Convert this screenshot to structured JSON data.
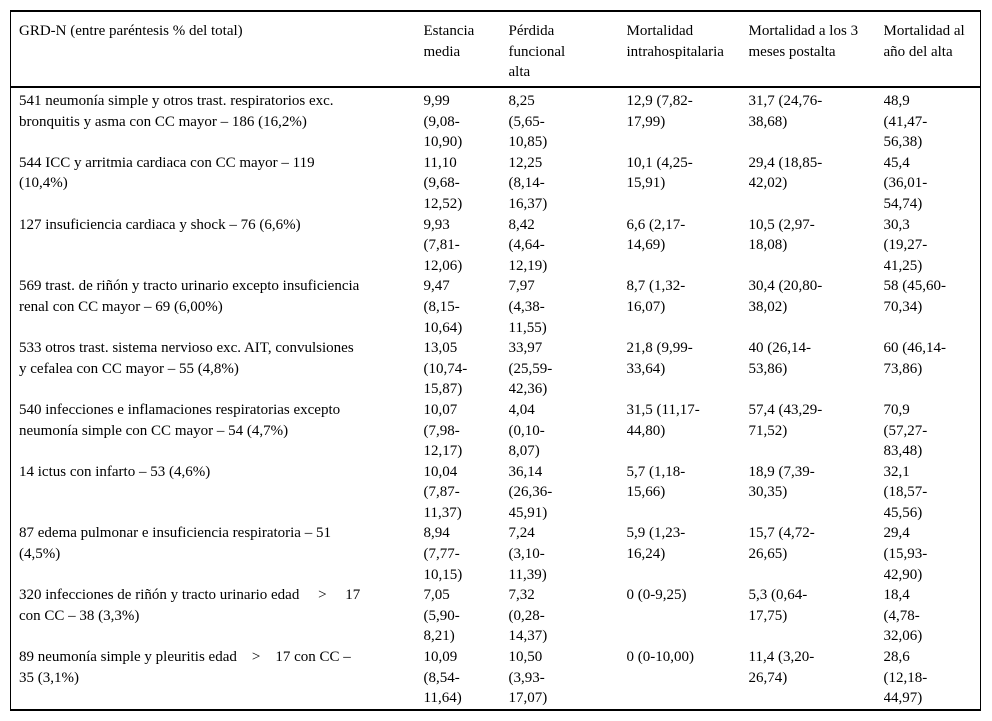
{
  "table": {
    "columns": [
      "GRD-N (entre paréntesis % del total)",
      "Estancia\nmedia",
      "Pérdida\nfuncional\nalta",
      "Mortalidad\nintrahospitalaria",
      "Mortalidad a los 3\nmeses postalta",
      "Mortalidad al\naño del alta"
    ],
    "rows": [
      [
        "541 neumonía simple y otros trast. respiratorios exc.\nbronquitis y asma con CC mayor – 186 (16,2%)",
        "9,99\n(9,08-\n10,90)",
        "8,25\n(5,65-\n10,85)",
        "12,9 (7,82-\n17,99)",
        "31,7 (24,76-\n38,68)",
        "48,9\n(41,47-\n56,38)"
      ],
      [
        "544 ICC y arritmia cardiaca con CC mayor – 119\n(10,4%)",
        "11,10\n(9,68-\n12,52)",
        "12,25\n(8,14-\n16,37)",
        "10,1 (4,25-\n15,91)",
        "29,4 (18,85-\n42,02)",
        "45,4\n(36,01-\n54,74)"
      ],
      [
        "127 insuficiencia cardiaca y shock – 76 (6,6%)",
        "9,93\n(7,81-\n12,06)",
        "8,42\n(4,64-\n12,19)",
        "6,6 (2,17-\n14,69)",
        "10,5 (2,97-\n18,08)",
        "30,3\n(19,27-\n41,25)"
      ],
      [
        "569 trast. de riñón y tracto urinario excepto insuficiencia\nrenal con CC mayor – 69 (6,00%)",
        "9,47\n(8,15-\n10,64)",
        "7,97\n(4,38-\n11,55)",
        "8,7 (1,32-\n16,07)",
        "30,4 (20,80-\n38,02)",
        "58 (45,60-\n70,34)"
      ],
      [
        "533 otros trast. sistema nervioso exc. AIT, convulsiones\ny cefalea con CC mayor – 55 (4,8%)",
        "13,05\n(10,74-\n15,87)",
        "33,97\n(25,59-\n42,36)",
        "21,8 (9,99-\n33,64)",
        "40 (26,14-\n53,86)",
        "60 (46,14-\n73,86)"
      ],
      [
        "540 infecciones e inflamaciones respiratorias excepto\nneumonía simple con CC mayor – 54 (4,7%)",
        "10,07\n(7,98-\n12,17)",
        "4,04\n(0,10-\n8,07)",
        "31,5 (11,17-\n44,80)",
        "57,4 (43,29-\n71,52)",
        "70,9\n(57,27-\n83,48)"
      ],
      [
        "14 ictus con infarto – 53 (4,6%)",
        "10,04\n(7,87-\n11,37)",
        "36,14\n(26,36-\n45,91)",
        "5,7 (1,18-\n15,66)",
        "18,9 (7,39-\n30,35)",
        "32,1\n(18,57-\n45,56)"
      ],
      [
        "87 edema pulmonar e insuficiencia respiratoria – 51\n(4,5%)",
        "8,94\n(7,77-\n10,15)",
        "7,24\n(3,10-\n11,39)",
        "5,9 (1,23-\n16,24)",
        "15,7 (4,72-\n26,65)",
        "29,4\n(15,93-\n42,90)"
      ],
      [
        "320 infecciones de riñón y tracto urinario edad     >     17\ncon CC – 38 (3,3%)",
        "7,05\n(5,90-\n8,21)",
        "7,32\n(0,28-\n14,37)",
        "0 (0-9,25)",
        "5,3 (0,64-\n17,75)",
        "18,4\n(4,78-\n32,06)"
      ],
      [
        "89 neumonía simple y pleuritis edad    >    17 con CC –\n35 (3,1%)",
        "10,09\n(8,54-\n11,64)",
        "10,50\n(3,93-\n17,07)",
        "0 (0-10,00)",
        "11,4 (3,20-\n26,74)",
        "28,6\n(12,18-\n44,97)"
      ]
    ]
  }
}
